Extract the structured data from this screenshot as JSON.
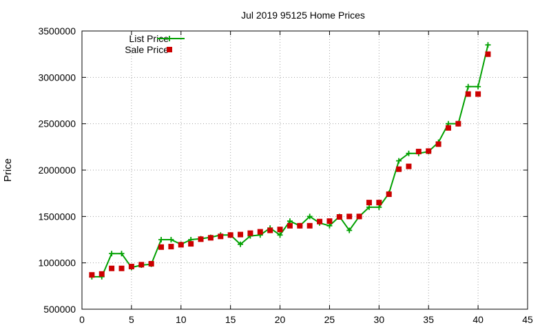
{
  "chart_data": {
    "type": "line",
    "title": "Jul 2019 95125 Home Prices",
    "xlabel": "",
    "ylabel": "Price",
    "xlim": [
      0,
      45
    ],
    "ylim": [
      500000,
      3500000
    ],
    "x_ticks": [
      0,
      5,
      10,
      15,
      20,
      25,
      30,
      35,
      40,
      45
    ],
    "y_ticks": [
      500000,
      1000000,
      1500000,
      2000000,
      2500000,
      3000000,
      3500000
    ],
    "grid": true,
    "legend_position": "top-left",
    "x": [
      1,
      2,
      3,
      4,
      5,
      6,
      7,
      8,
      9,
      10,
      11,
      12,
      13,
      14,
      15,
      16,
      17,
      18,
      19,
      20,
      21,
      22,
      23,
      24,
      25,
      26,
      27,
      28,
      29,
      30,
      31,
      32,
      33,
      34,
      35,
      36,
      37,
      38,
      39,
      40,
      41
    ],
    "series": [
      {
        "name": "List Price",
        "style": "lines+points",
        "color": "#00a000",
        "marker": "plus",
        "values": [
          850000,
          850000,
          1100000,
          1100000,
          950000,
          975000,
          985000,
          1250000,
          1250000,
          1200000,
          1250000,
          1260000,
          1275000,
          1300000,
          1300000,
          1200000,
          1290000,
          1300000,
          1375000,
          1300000,
          1450000,
          1400000,
          1500000,
          1430000,
          1400000,
          1500000,
          1350000,
          1500000,
          1600000,
          1600000,
          1750000,
          2100000,
          2180000,
          2180000,
          2200000,
          2300000,
          2500000,
          2500000,
          2900000,
          2900000,
          3350000
        ]
      },
      {
        "name": "Sale Price",
        "style": "points",
        "color": "#cc0000",
        "marker": "square",
        "values": [
          870000,
          880000,
          940000,
          940000,
          960000,
          980000,
          990000,
          1170000,
          1175000,
          1195000,
          1205000,
          1255000,
          1270000,
          1285000,
          1300000,
          1305000,
          1320000,
          1335000,
          1350000,
          1360000,
          1400000,
          1400000,
          1400000,
          1445000,
          1450000,
          1495000,
          1500000,
          1500000,
          1650000,
          1650000,
          1740000,
          2010000,
          2040000,
          2200000,
          2205000,
          2280000,
          2455000,
          2500000,
          2820000,
          2820000,
          3250000
        ]
      }
    ]
  }
}
